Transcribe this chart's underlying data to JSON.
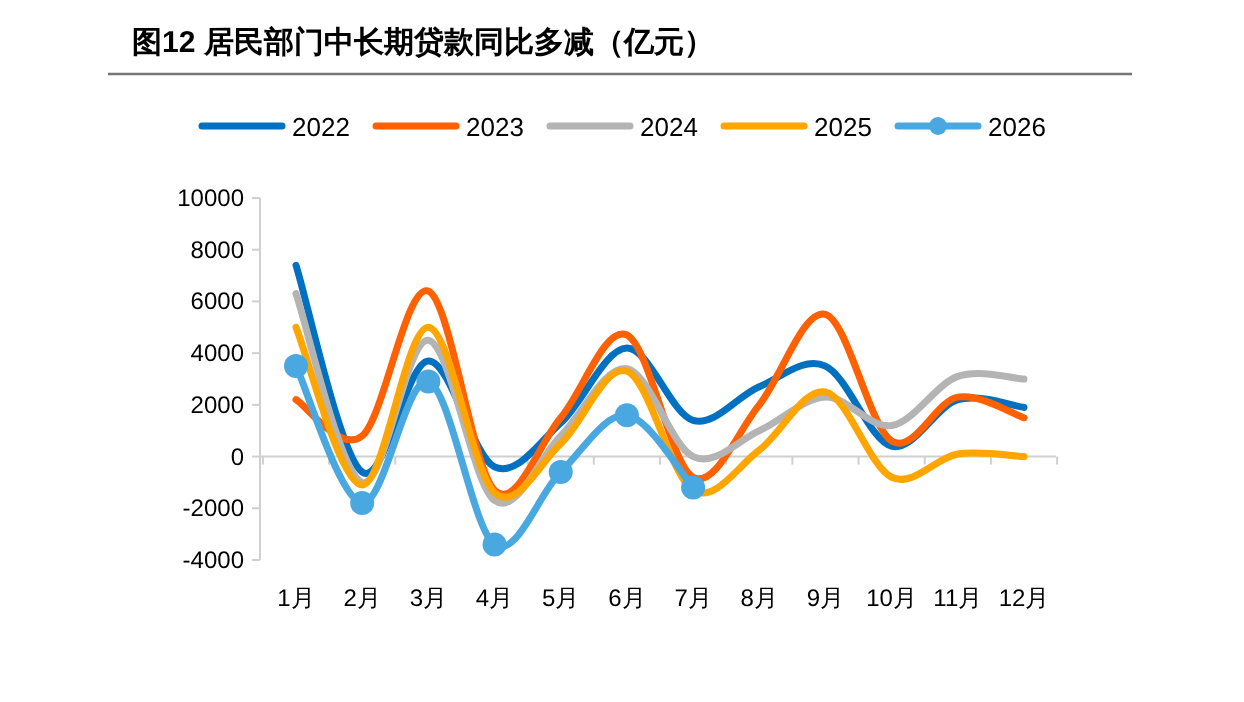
{
  "chart_data": {
    "type": "line",
    "title": "图12 居民部门中长期贷款同比多减（亿元）",
    "categories": [
      "1月",
      "2月",
      "3月",
      "4月",
      "5月",
      "6月",
      "7月",
      "8月",
      "9月",
      "10月",
      "11月",
      "12月"
    ],
    "series": [
      {
        "name": "2022",
        "color": "#0070c0",
        "values": [
          7400,
          -600,
          3700,
          -400,
          1300,
          4200,
          1400,
          2700,
          3500,
          400,
          2200,
          1900
        ]
      },
      {
        "name": "2023",
        "color": "#ff6000",
        "values": [
          2200,
          800,
          6400,
          -1300,
          1500,
          4700,
          -800,
          2000,
          5500,
          600,
          2300,
          1500
        ]
      },
      {
        "name": "2024",
        "color": "#b4b4b4",
        "values": [
          6300,
          -1000,
          4500,
          -1700,
          800,
          3400,
          0,
          1000,
          2300,
          1200,
          3100,
          3000
        ]
      },
      {
        "name": "2025",
        "color": "#ffa500",
        "values": [
          5000,
          -1100,
          5000,
          -1400,
          500,
          3300,
          -1300,
          250,
          2500,
          -800,
          100,
          0
        ]
      },
      {
        "name": "2026",
        "color": "#4aa8e0",
        "marker": "circle",
        "values": [
          3500,
          -1800,
          2900,
          -3400,
          -600,
          1600,
          -1200,
          null,
          null,
          null,
          null,
          null
        ]
      }
    ],
    "ylim": [
      -4000,
      10000
    ],
    "yticks": [
      -4000,
      -2000,
      0,
      2000,
      4000,
      6000,
      8000,
      10000
    ],
    "legend": "top"
  }
}
